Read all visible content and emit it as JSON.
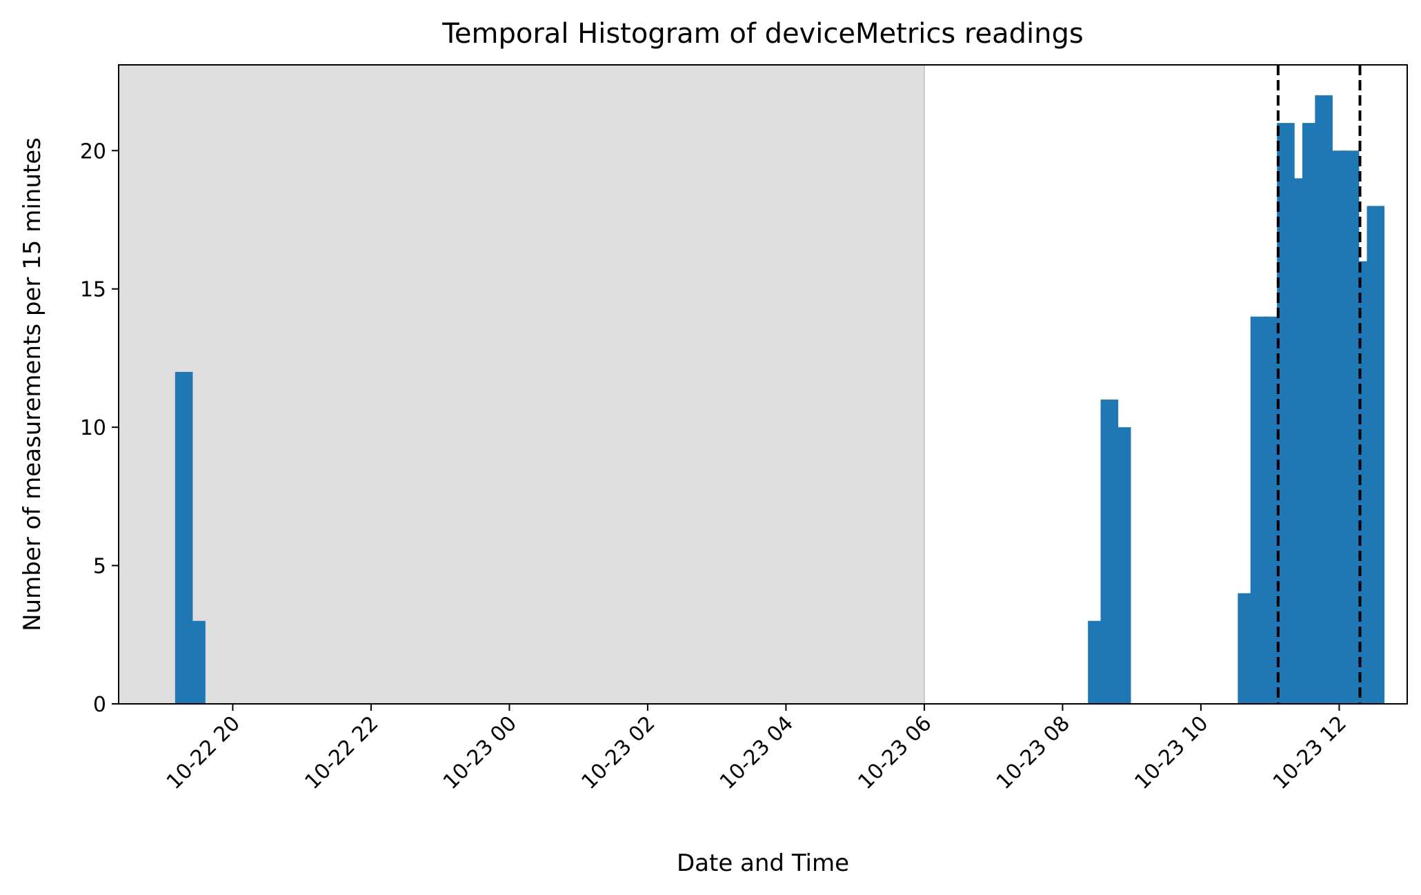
{
  "chart_data": {
    "type": "bar",
    "title": "Temporal Histogram of deviceMetrics readings",
    "xlabel": "Date and Time",
    "ylabel": "Number of measurements per 15 minutes",
    "bin_minutes": 15,
    "x_axis": "datetime",
    "xlim": [
      "2022-10-22T18:21",
      "2022-10-23T12:59"
    ],
    "ylim": [
      0,
      23.1
    ],
    "grid": false,
    "legend": "none",
    "bar_color": "#1f77b4",
    "x_ticks": [
      {
        "t": "2022-10-22T20:00",
        "label": "10-22 20"
      },
      {
        "t": "2022-10-22T22:00",
        "label": "10-22 22"
      },
      {
        "t": "2022-10-23T00:00",
        "label": "10-23 00"
      },
      {
        "t": "2022-10-23T02:00",
        "label": "10-23 02"
      },
      {
        "t": "2022-10-23T04:00",
        "label": "10-23 04"
      },
      {
        "t": "2022-10-23T06:00",
        "label": "10-23 06"
      },
      {
        "t": "2022-10-23T08:00",
        "label": "10-23 08"
      },
      {
        "t": "2022-10-23T10:00",
        "label": "10-23 10"
      },
      {
        "t": "2022-10-23T12:00",
        "label": "10-23 12"
      }
    ],
    "y_ticks": [
      {
        "v": 0,
        "label": "0"
      },
      {
        "v": 5,
        "label": "5"
      },
      {
        "v": 10,
        "label": "10"
      },
      {
        "v": 15,
        "label": "15"
      },
      {
        "v": 20,
        "label": "20"
      }
    ],
    "bins": [
      {
        "start": "2022-10-22T19:10",
        "count": 12
      },
      {
        "start": "2022-10-22T19:21",
        "count": 3
      },
      {
        "start": "2022-10-23T08:22",
        "count": 3
      },
      {
        "start": "2022-10-23T08:33",
        "count": 11
      },
      {
        "start": "2022-10-23T08:44",
        "count": 10
      },
      {
        "start": "2022-10-23T10:32",
        "count": 4
      },
      {
        "start": "2022-10-23T10:43",
        "count": 14
      },
      {
        "start": "2022-10-23T10:54",
        "count": 14
      },
      {
        "start": "2022-10-23T11:06",
        "count": 21
      },
      {
        "start": "2022-10-23T11:17",
        "count": 19
      },
      {
        "start": "2022-10-23T11:28",
        "count": 21
      },
      {
        "start": "2022-10-23T11:39",
        "count": 22
      },
      {
        "start": "2022-10-23T11:50",
        "count": 20
      },
      {
        "start": "2022-10-23T12:02",
        "count": 20
      },
      {
        "start": "2022-10-23T12:13",
        "count": 16
      },
      {
        "start": "2022-10-23T12:24",
        "count": 18
      }
    ],
    "shaded_region": {
      "start": "2022-10-22T18:21",
      "end": "2022-10-23T06:00",
      "color": "#dedede"
    },
    "vertical_lines": [
      {
        "t": "2022-10-23T11:07",
        "style": "dashed",
        "color": "#000000"
      },
      {
        "t": "2022-10-23T12:18",
        "style": "dashed",
        "color": "#000000"
      }
    ]
  }
}
